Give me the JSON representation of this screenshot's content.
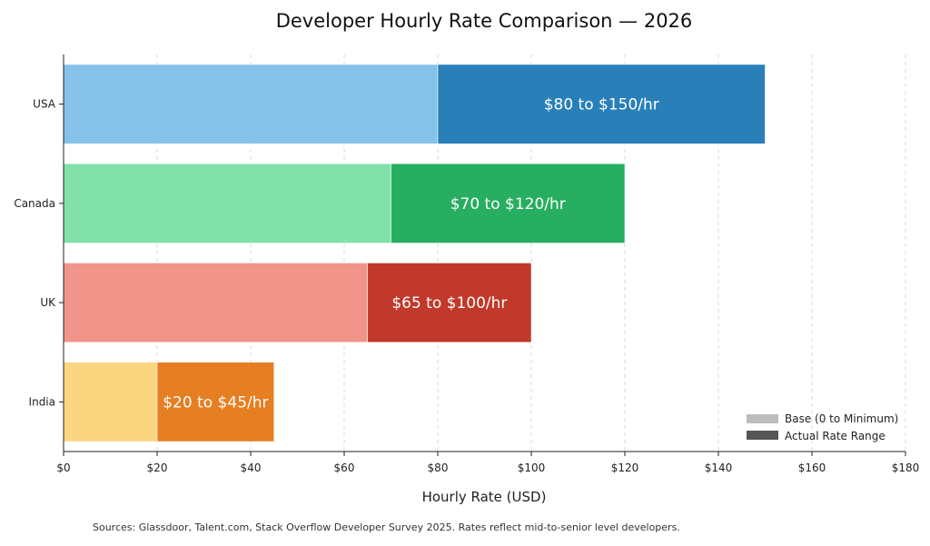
{
  "chart_data": {
    "type": "bar",
    "orientation": "horizontal",
    "stacked": true,
    "title": "Developer Hourly Rate Comparison — 2026",
    "xlabel": "Hourly Rate (USD)",
    "ylabel": "",
    "xlim": [
      0,
      180
    ],
    "x_ticks": [
      "$0",
      "$20",
      "$40",
      "$60",
      "$80",
      "$100",
      "$120",
      "$140",
      "$160",
      "$180"
    ],
    "x_tick_values": [
      0,
      20,
      40,
      60,
      80,
      100,
      120,
      140,
      160,
      180
    ],
    "grid": "x dashed",
    "categories": [
      "USA",
      "Canada",
      "UK",
      "India"
    ],
    "series": [
      {
        "name": "Base (0 to Minimum)",
        "values": [
          80,
          70,
          65,
          20
        ],
        "colors": [
          "#85c1e9",
          "#82e0aa",
          "#f1948a",
          "#fcd581"
        ]
      },
      {
        "name": "Actual Rate Range",
        "values": [
          70,
          50,
          35,
          25
        ],
        "colors": [
          "#2980b9",
          "#27ae60",
          "#c0392b",
          "#e67e22"
        ]
      }
    ],
    "range_labels": [
      "$80 to $150/hr",
      "$70 to $120/hr",
      "$65 to $100/hr",
      "$20 to $45/hr"
    ],
    "legend": {
      "placement": "lower-right",
      "entries": [
        {
          "label": "Base (0 to Minimum)",
          "color": "#bdbdbd"
        },
        {
          "label": "Actual Rate Range",
          "color": "#555555"
        }
      ]
    },
    "footnote": "Sources: Glassdoor, Talent.com, Stack Overflow Developer Survey 2025. Rates reflect mid-to-senior level developers."
  }
}
